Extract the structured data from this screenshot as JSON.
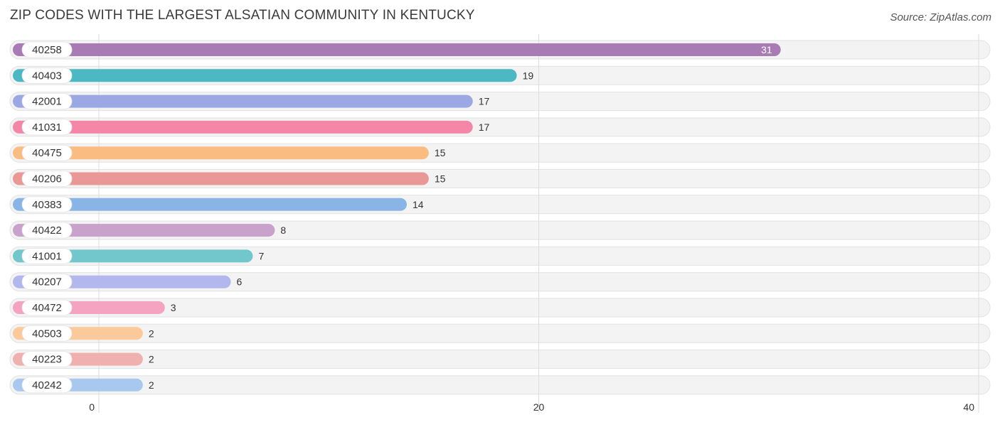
{
  "header": {
    "title": "ZIP CODES WITH THE LARGEST ALSATIAN COMMUNITY IN KENTUCKY",
    "source": "Source: ZipAtlas.com"
  },
  "chart_data": {
    "type": "bar",
    "orientation": "horizontal",
    "title": "ZIP CODES WITH THE LARGEST ALSATIAN COMMUNITY IN KENTUCKY",
    "xlabel": "",
    "ylabel": "",
    "xlim": [
      0,
      40
    ],
    "ticks": [
      0,
      20,
      40
    ],
    "grid": true,
    "categories": [
      "40258",
      "40403",
      "42001",
      "41031",
      "40475",
      "40206",
      "40383",
      "40422",
      "41001",
      "40207",
      "40472",
      "40503",
      "40223",
      "40242"
    ],
    "values": [
      31,
      19,
      17,
      17,
      15,
      15,
      14,
      8,
      7,
      6,
      3,
      2,
      2,
      2
    ],
    "colors": [
      "#a97bb5",
      "#4bb8c4",
      "#9ca8e4",
      "#f487a8",
      "#fbbc82",
      "#ea9896",
      "#88b4e6",
      "#c8a2cb",
      "#71c7cc",
      "#b2b8ee",
      "#f4a4c0",
      "#fbc99a",
      "#f0b0ae",
      "#a8c8f0"
    ]
  }
}
